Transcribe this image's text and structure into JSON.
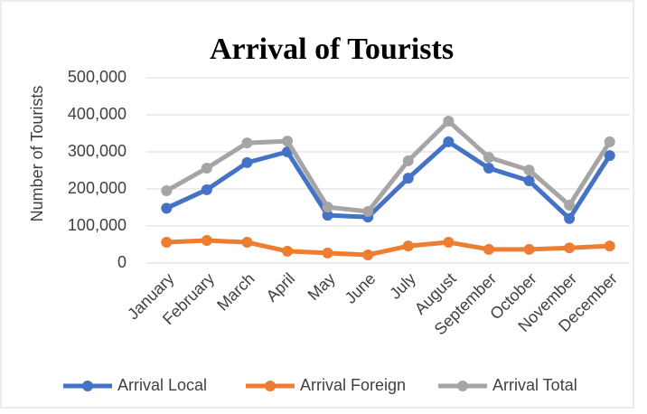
{
  "chart_data": {
    "type": "line",
    "title": "Arrival of Tourists",
    "y_label": "Number of Tourists",
    "categories": [
      "January",
      "February",
      "March",
      "April",
      "May",
      "June",
      "July",
      "August",
      "September",
      "October",
      "November",
      "December"
    ],
    "series": [
      {
        "name": "Arrival Local",
        "color": "#4472c4",
        "values": [
          148000,
          198000,
          271000,
          300000,
          129000,
          124000,
          229000,
          327000,
          256000,
          222000,
          120000,
          290000
        ]
      },
      {
        "name": "Arrival Foreign",
        "color": "#ed7d31",
        "values": [
          56000,
          61000,
          56000,
          32000,
          27000,
          22000,
          46000,
          56000,
          37000,
          37000,
          41000,
          46000
        ]
      },
      {
        "name": "Arrival Total",
        "color": "#a5a5a5",
        "values": [
          195000,
          256000,
          324000,
          329000,
          151000,
          139000,
          276000,
          383000,
          285000,
          251000,
          156000,
          327000
        ]
      }
    ],
    "ylim": [
      0,
      500000
    ],
    "yticks": [
      0,
      {
        "value": 100000,
        "label": "100,000"
      },
      {
        "value": 200000,
        "label": "200,000"
      },
      {
        "value": 300000,
        "label": "300,000"
      },
      {
        "value": 400000,
        "label": "400,000"
      },
      {
        "value": 500000,
        "label": "500,000"
      }
    ],
    "grid": true,
    "legend": "bottom"
  }
}
